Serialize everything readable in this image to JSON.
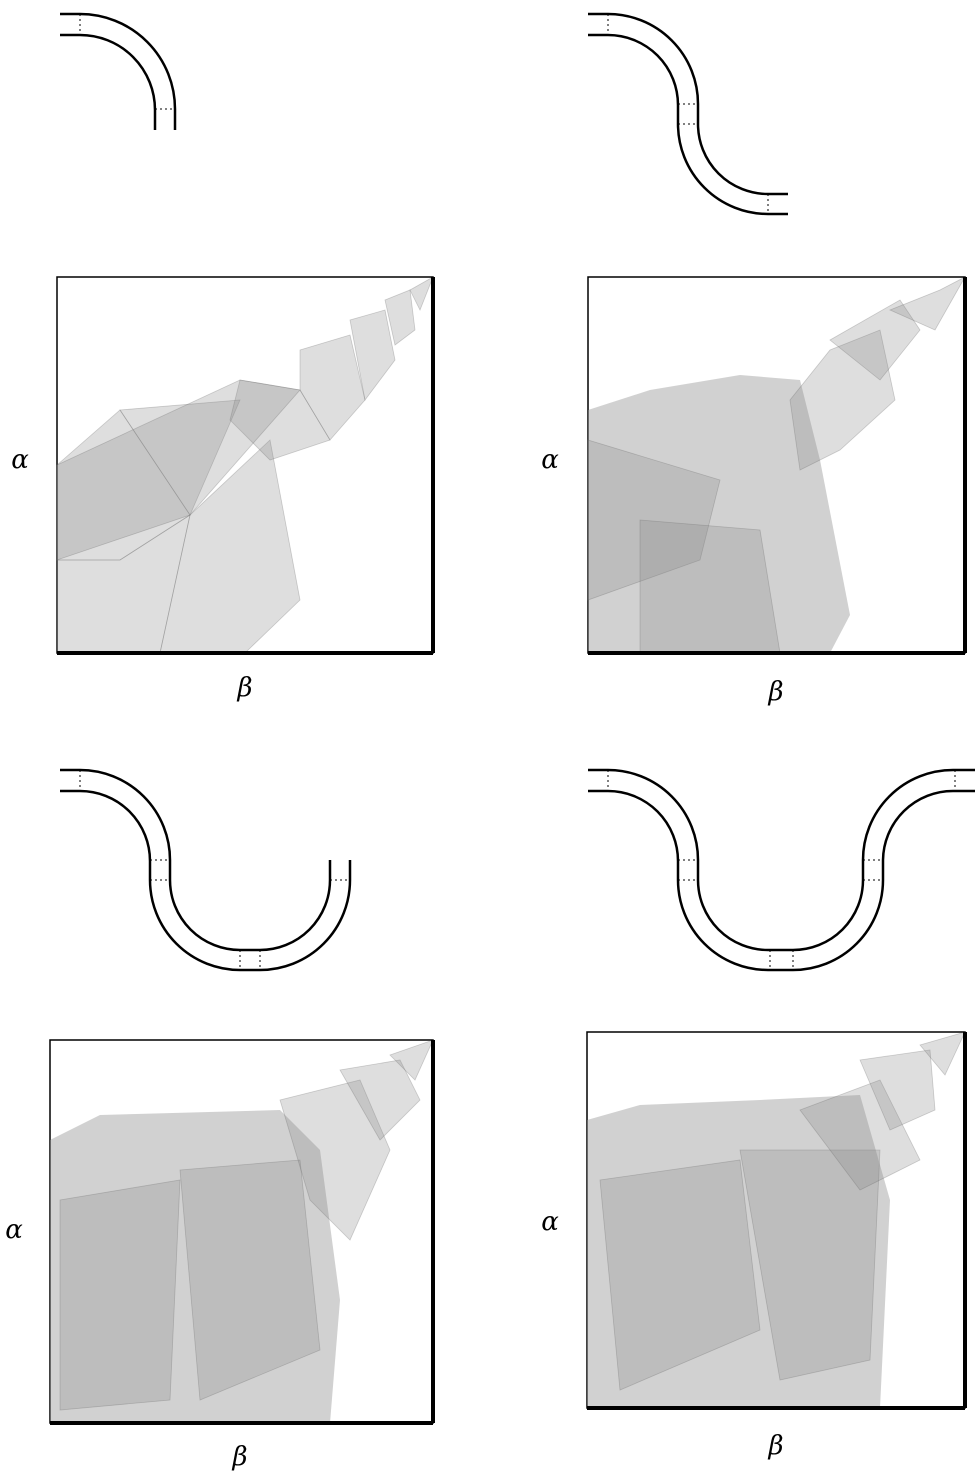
{
  "panels": [
    {
      "y_label": "α",
      "x_label": "β"
    },
    {
      "y_label": "α",
      "x_label": "β"
    },
    {
      "y_label": "α",
      "x_label": "β"
    },
    {
      "y_label": "α",
      "x_label": "β"
    }
  ]
}
